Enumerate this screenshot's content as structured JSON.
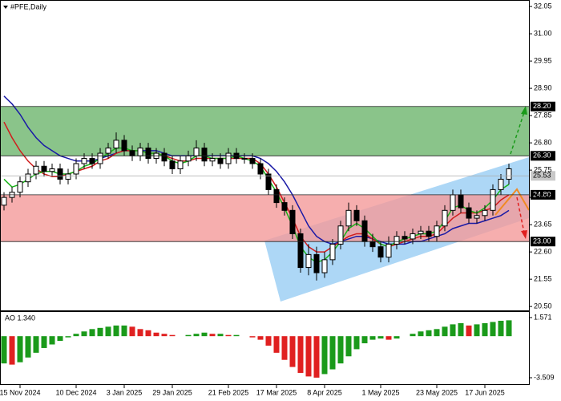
{
  "chart_data": {
    "type": "candlestick",
    "title": "#PFE,Daily",
    "categories": [
      null,
      null,
      "15 Nov 2024",
      null,
      null,
      null,
      null,
      null,
      null,
      "10 Dec 2024",
      null,
      null,
      null,
      null,
      null,
      "3 Jan 2025",
      null,
      null,
      null,
      null,
      null,
      "29 Jan 2025",
      null,
      null,
      null,
      null,
      null,
      null,
      "21 Feb 2025",
      null,
      null,
      null,
      null,
      null,
      "17 Mar 2025",
      null,
      null,
      null,
      null,
      null,
      "8 Apr 2025",
      null,
      null,
      null,
      null,
      null,
      null,
      "1 May 2025",
      null,
      null,
      null,
      null,
      null,
      null,
      "23 May 2025",
      null,
      null,
      null,
      null,
      null,
      "17 Jun 2025",
      null,
      null,
      null
    ],
    "open": [
      24.4,
      24.7,
      24.9,
      25.3,
      25.6,
      25.9,
      25.7,
      25.8,
      25.4,
      25.6,
      26.0,
      26.2,
      26.0,
      26.4,
      26.6,
      26.9,
      26.5,
      26.3,
      26.6,
      26.2,
      26.4,
      26.1,
      25.8,
      26.1,
      26.3,
      26.6,
      26.1,
      26.2,
      26.0,
      26.4,
      26.2,
      26.2,
      26.0,
      25.6,
      25.0,
      24.5,
      24.2,
      23.3,
      22.0,
      22.5,
      21.8,
      22.3,
      22.9,
      23.6,
      24.2,
      23.8,
      23.0,
      22.8,
      22.4,
      22.9,
      23.2,
      23.1,
      23.3,
      23.4,
      23.2,
      23.6,
      24.2,
      24.8,
      24.3,
      23.9,
      24.0,
      24.2,
      25.0,
      25.4
    ],
    "high": [
      24.9,
      25.1,
      25.5,
      25.8,
      26.1,
      26.1,
      26.0,
      26.0,
      25.8,
      26.2,
      26.4,
      26.4,
      26.6,
      26.8,
      27.2,
      27.1,
      26.7,
      26.8,
      26.8,
      26.6,
      26.6,
      26.3,
      26.3,
      26.5,
      26.9,
      26.8,
      26.4,
      26.4,
      26.6,
      26.6,
      26.4,
      26.4,
      26.2,
      25.8,
      25.2,
      24.7,
      24.4,
      23.5,
      22.9,
      22.8,
      22.6,
      23.1,
      23.8,
      24.5,
      24.4,
      24.0,
      23.3,
      23.0,
      23.2,
      23.4,
      23.4,
      23.5,
      23.6,
      23.6,
      23.8,
      24.4,
      25.0,
      25.0,
      24.5,
      24.2,
      24.4,
      25.2,
      25.6,
      26.0
    ],
    "low": [
      24.2,
      24.5,
      24.7,
      25.1,
      25.4,
      25.5,
      25.5,
      25.2,
      25.2,
      25.4,
      25.8,
      25.8,
      25.8,
      26.2,
      26.4,
      26.3,
      26.1,
      26.1,
      26.0,
      26.0,
      25.9,
      25.6,
      25.6,
      25.9,
      26.1,
      25.9,
      25.9,
      25.8,
      25.8,
      26.0,
      26.0,
      25.8,
      25.4,
      24.8,
      24.3,
      24.0,
      23.1,
      21.8,
      21.7,
      21.5,
      21.6,
      22.1,
      22.7,
      23.4,
      23.6,
      22.8,
      22.6,
      22.2,
      22.2,
      22.7,
      22.9,
      22.9,
      23.1,
      23.0,
      23.0,
      23.4,
      24.0,
      24.1,
      23.7,
      23.7,
      23.8,
      24.0,
      24.8,
      25.2
    ],
    "close": [
      24.7,
      24.9,
      25.3,
      25.6,
      25.9,
      25.7,
      25.8,
      25.4,
      25.6,
      26.0,
      26.2,
      26.0,
      26.4,
      26.6,
      26.9,
      26.5,
      26.3,
      26.6,
      26.2,
      26.4,
      26.1,
      25.8,
      26.1,
      26.3,
      26.6,
      26.1,
      26.2,
      26.0,
      26.4,
      26.2,
      26.2,
      26.0,
      25.6,
      25.0,
      24.5,
      24.2,
      23.3,
      22.0,
      22.5,
      21.8,
      22.3,
      22.9,
      23.6,
      24.2,
      23.8,
      23.0,
      22.8,
      22.4,
      22.9,
      23.2,
      23.1,
      23.3,
      23.4,
      23.2,
      23.6,
      24.2,
      24.8,
      24.3,
      23.9,
      24.0,
      24.2,
      25.0,
      25.4,
      25.8
    ],
    "moving_averages": [
      {
        "color": "#1a1aa6",
        "values": [
          28.6,
          28.3,
          27.9,
          27.4,
          27.0,
          26.7,
          26.5,
          26.3,
          26.2,
          26.1,
          26.1,
          26.1,
          26.2,
          26.3,
          26.4,
          26.5,
          26.5,
          26.5,
          26.5,
          26.5,
          26.4,
          26.3,
          26.3,
          26.3,
          26.3,
          26.3,
          26.3,
          26.3,
          26.3,
          26.3,
          26.3,
          26.3,
          26.2,
          26.0,
          25.7,
          25.3,
          24.8,
          24.2,
          23.6,
          23.2,
          23.0,
          22.9,
          23.0,
          23.1,
          23.2,
          23.2,
          23.1,
          23.0,
          22.9,
          22.9,
          22.9,
          23.0,
          23.0,
          23.1,
          23.2,
          23.3,
          23.5,
          23.6,
          23.7,
          23.7,
          23.8,
          23.9,
          24.0,
          24.2
        ]
      },
      {
        "color": "#d01c1c",
        "values": [
          27.6,
          27.0,
          26.5,
          26.1,
          25.8,
          25.6,
          25.5,
          25.5,
          25.6,
          25.7,
          25.8,
          25.9,
          26.1,
          26.2,
          26.4,
          26.5,
          26.5,
          26.5,
          26.4,
          26.4,
          26.3,
          26.2,
          26.1,
          26.1,
          26.2,
          26.2,
          26.2,
          26.2,
          26.2,
          26.2,
          26.2,
          26.2,
          26.0,
          25.6,
          25.1,
          24.5,
          23.9,
          23.2,
          22.8,
          22.6,
          22.6,
          22.8,
          23.0,
          23.2,
          23.3,
          23.3,
          23.1,
          22.9,
          22.8,
          22.9,
          23.0,
          23.1,
          23.2,
          23.2,
          23.3,
          23.6,
          23.9,
          24.1,
          24.1,
          24.1,
          24.2,
          24.3,
          24.6,
          24.8
        ]
      },
      {
        "color": "#19b319",
        "values": [
          25.4,
          25.1,
          25.2,
          25.4,
          25.6,
          25.7,
          25.7,
          25.6,
          25.6,
          25.7,
          25.9,
          26.0,
          26.2,
          26.4,
          26.6,
          26.6,
          26.5,
          26.5,
          26.4,
          26.4,
          26.3,
          26.1,
          26.0,
          26.1,
          26.3,
          26.3,
          26.2,
          26.2,
          26.2,
          26.3,
          26.2,
          26.1,
          25.9,
          25.4,
          24.9,
          24.3,
          23.6,
          22.8,
          22.4,
          22.2,
          22.3,
          22.6,
          23.0,
          23.5,
          23.7,
          23.5,
          23.2,
          22.9,
          22.8,
          23.0,
          23.1,
          23.2,
          23.3,
          23.3,
          23.4,
          23.8,
          24.3,
          24.4,
          24.2,
          24.1,
          24.3,
          24.6,
          25.0,
          25.2
        ]
      }
    ],
    "ylim": [
      20.35,
      32.3
    ],
    "yticks": [
      32.05,
      {
        "value": 31,
        "label": "31.00"
      },
      29.95,
      {
        "value": 28.9,
        "label": "28.90"
      },
      27.85,
      {
        "value": 26.8,
        "label": "26.80"
      },
      25.75,
      {
        "value": 24.7,
        "label": "24.70"
      },
      23.65,
      {
        "value": 22.6,
        "label": "22.60"
      },
      21.55,
      {
        "value": 20.5,
        "label": "20.50"
      }
    ],
    "zones": [
      {
        "from": 26.3,
        "to": 28.2,
        "color": "#6db56d"
      },
      {
        "from": 23.0,
        "to": 24.8,
        "color": "#f49a9a"
      }
    ],
    "levels": [
      {
        "value": 28.2,
        "label": "28.20",
        "color": "#000000"
      },
      {
        "value": 26.3,
        "label": "26.30",
        "color": "#000000"
      },
      {
        "value": 25.53,
        "label": "25.53",
        "color": "#c8c8c8"
      },
      {
        "value": 24.8,
        "label": "24.80",
        "color": "#000000"
      },
      {
        "value": 23.0,
        "label": "23.00",
        "color": "#000000"
      }
    ],
    "ao": {
      "title": "AO 1.340",
      "ylim": [
        -4.05,
        2.11
      ],
      "yticks": [
        1.571,
        -3.509
      ],
      "up_color": "#1a9a1a",
      "down_color": "#e02020",
      "values": [
        -2.3,
        -2.4,
        -2.2,
        -1.8,
        -1.4,
        -1.0,
        -0.7,
        -0.4,
        -0.1,
        0.2,
        0.4,
        0.6,
        0.7,
        0.8,
        0.9,
        0.9,
        0.8,
        0.6,
        0.5,
        0.3,
        0.2,
        0.1,
        0.0,
        0.1,
        0.2,
        0.3,
        0.2,
        0.2,
        0.1,
        0.1,
        0.0,
        -0.1,
        -0.3,
        -0.8,
        -1.4,
        -2.0,
        -2.6,
        -3.1,
        -3.4,
        -3.5,
        -3.2,
        -2.8,
        -2.3,
        -1.7,
        -1.1,
        -0.6,
        -0.3,
        -0.2,
        -0.3,
        -0.2,
        0.0,
        0.2,
        0.4,
        0.5,
        0.6,
        0.8,
        1.0,
        1.1,
        0.9,
        1.0,
        1.1,
        1.2,
        1.3,
        1.34
      ]
    }
  }
}
